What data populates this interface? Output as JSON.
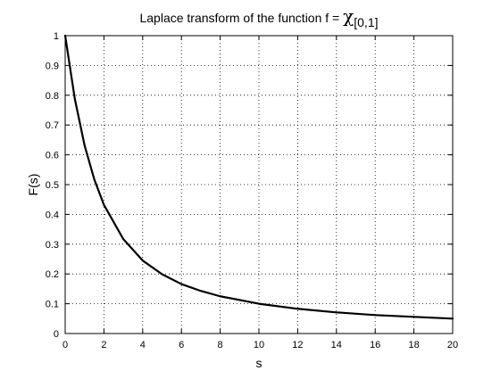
{
  "chart_data": {
    "type": "line",
    "title": "Laplace transform of the function f = χ[0,1]",
    "title_parts": {
      "main": "Laplace transform of the function f = ",
      "chi": "χ",
      "subscript": "[0,1]"
    },
    "xlabel": "s",
    "ylabel": "F(s)",
    "xlim": [
      0,
      20
    ],
    "ylim": [
      0,
      1
    ],
    "xticks": [
      0,
      2,
      4,
      6,
      8,
      10,
      12,
      14,
      16,
      18,
      20
    ],
    "yticks": [
      0,
      0.1,
      0.2,
      0.3,
      0.4,
      0.5,
      0.6,
      0.7,
      0.8,
      0.9,
      1
    ],
    "grid": true,
    "grid_style": "dotted",
    "line_color": "#000000",
    "series": [
      {
        "x": [
          0,
          0.5,
          1,
          1.5,
          2,
          3,
          4,
          5,
          6,
          7,
          8,
          10,
          12,
          14,
          16,
          18,
          20
        ],
        "values": [
          1,
          0.787,
          0.632,
          0.518,
          0.432,
          0.317,
          0.245,
          0.199,
          0.166,
          0.143,
          0.125,
          0.1,
          0.083,
          0.071,
          0.062,
          0.056,
          0.05
        ]
      }
    ]
  }
}
